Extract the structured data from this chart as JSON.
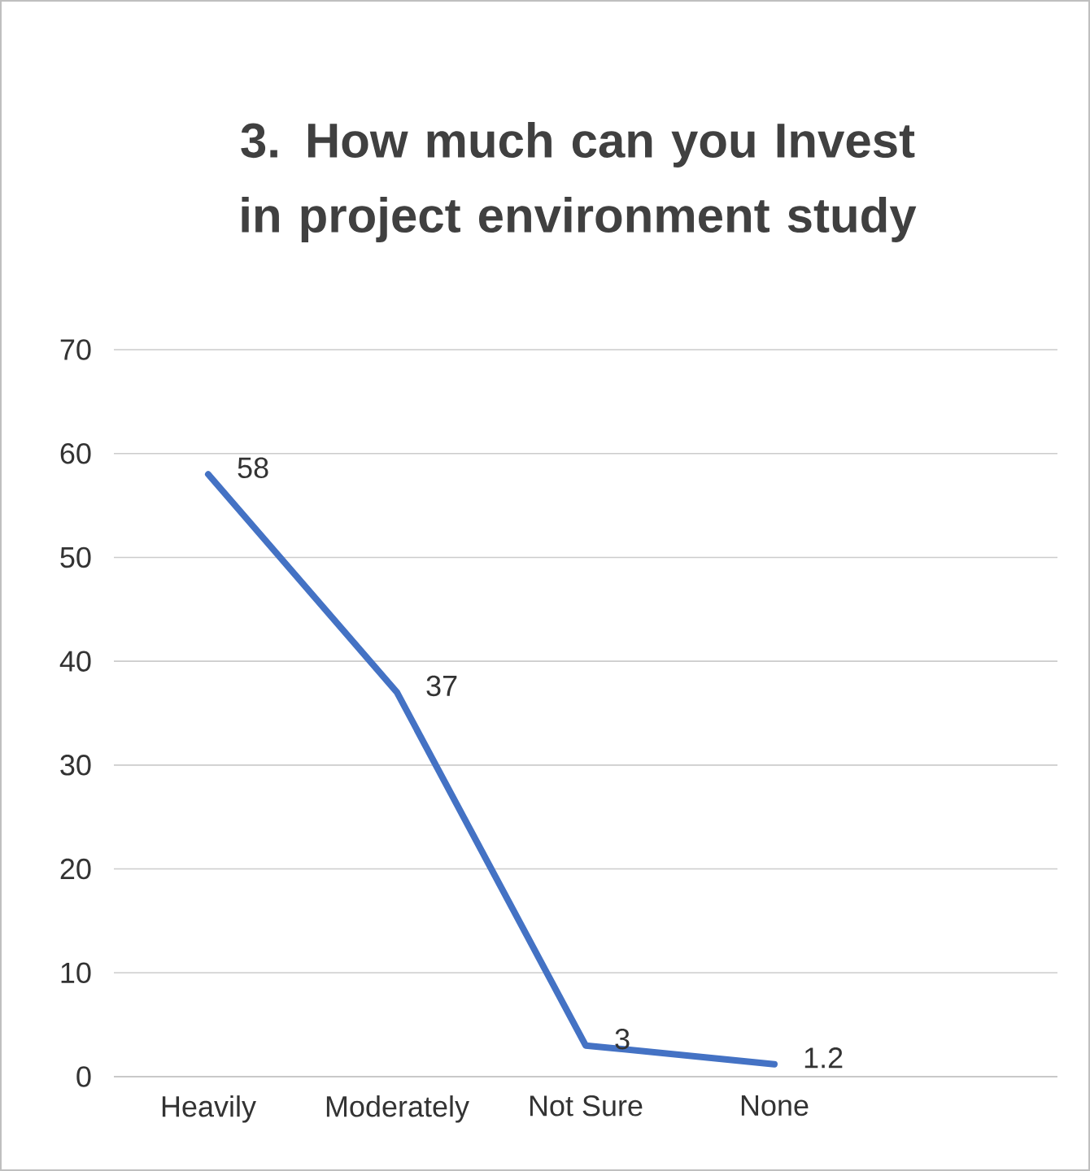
{
  "chart_data": {
    "type": "line",
    "title": "3.      How much can you Invest in project environment study",
    "categories": [
      "Heavily",
      "Moderately",
      "Not Sure",
      "None",
      null
    ],
    "values": [
      58,
      37,
      3,
      1.2,
      null
    ],
    "color": "#4472c4",
    "ylim": [
      0,
      70
    ],
    "yticks": [
      0,
      10,
      20,
      30,
      40,
      50,
      60,
      70
    ],
    "grid": "y",
    "data_labels": true
  }
}
